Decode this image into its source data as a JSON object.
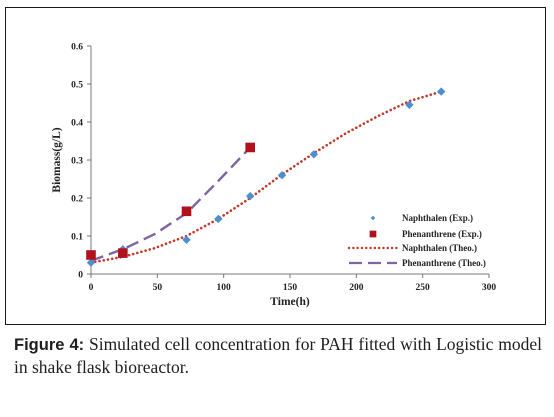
{
  "chart_data": {
    "type": "scatter",
    "title": "",
    "xlabel": "Time(h)",
    "ylabel": "Biomass(g/L)",
    "xlim": [
      0,
      300
    ],
    "ylim": [
      0,
      0.6
    ],
    "x_ticks": [
      "0",
      "50",
      "100",
      "150",
      "200",
      "250",
      "300"
    ],
    "y_ticks": [
      "0",
      "0.1",
      "0.2",
      "0.3",
      "0.4",
      "0.5",
      "0.6"
    ],
    "grid": false,
    "legend_position": "right",
    "series": [
      {
        "name": "Naphthalen (Exp.)",
        "kind": "markers",
        "marker": "diamond",
        "color": "#4f8fcf",
        "x": [
          0,
          24,
          72,
          96,
          120,
          144,
          168,
          240,
          264
        ],
        "y": [
          0.03,
          0.065,
          0.09,
          0.145,
          0.205,
          0.26,
          0.315,
          0.445,
          0.48
        ]
      },
      {
        "name": "Phenanthrene (Exp.)",
        "kind": "markers",
        "marker": "square",
        "color": "#b0121d",
        "x": [
          0,
          24,
          72,
          120
        ],
        "y": [
          0.05,
          0.055,
          0.165,
          0.333
        ]
      },
      {
        "name": "Naphthalen (Theo.)",
        "kind": "line",
        "line_style": "dotted",
        "color": "#c0392b",
        "x": [
          0,
          24,
          48,
          72,
          96,
          120,
          144,
          168,
          192,
          216,
          240,
          264
        ],
        "y": [
          0.03,
          0.045,
          0.068,
          0.1,
          0.145,
          0.2,
          0.262,
          0.318,
          0.37,
          0.415,
          0.455,
          0.48
        ]
      },
      {
        "name": "Phenanthrene (Theo.)",
        "kind": "line",
        "line_style": "dashed",
        "color": "#8064a2",
        "x": [
          0,
          24,
          48,
          72,
          96,
          120
        ],
        "y": [
          0.035,
          0.065,
          0.105,
          0.16,
          0.245,
          0.333
        ]
      }
    ]
  },
  "caption": {
    "label": "Figure 4:",
    "text": " Simulated cell concentration for PAH fitted with Logistic model in shake flask bioreactor."
  }
}
